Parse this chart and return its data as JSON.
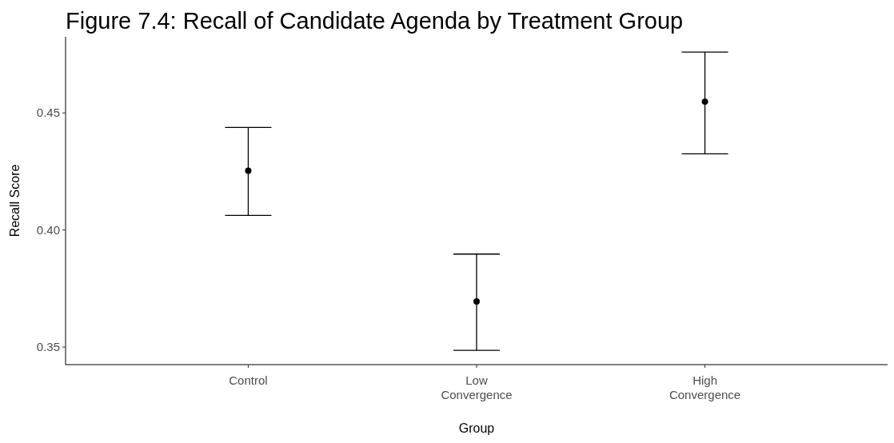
{
  "chart_data": {
    "type": "scatter",
    "title": "Figure 7.4: Recall of Candidate Agenda by Treatment Group",
    "xlabel": "Group",
    "ylabel": "Recall Score",
    "categories": [
      "Control",
      "Low Convergence",
      "High Convergence"
    ],
    "color": "#000000",
    "values": [
      0.4253,
      0.3695,
      0.4548
    ],
    "errors": [
      [
        0.4062,
        0.4438
      ],
      [
        0.3486,
        0.3897
      ],
      [
        0.4325,
        0.476
      ]
    ],
    "ylim": [
      0.3425,
      0.4825
    ],
    "yticks": [
      {
        "value": 0.35,
        "label": "0.35"
      },
      {
        "value": 0.4,
        "label": "0.40"
      },
      {
        "value": 0.45,
        "label": "0.45"
      }
    ],
    "marker": "circle",
    "grid": false
  }
}
